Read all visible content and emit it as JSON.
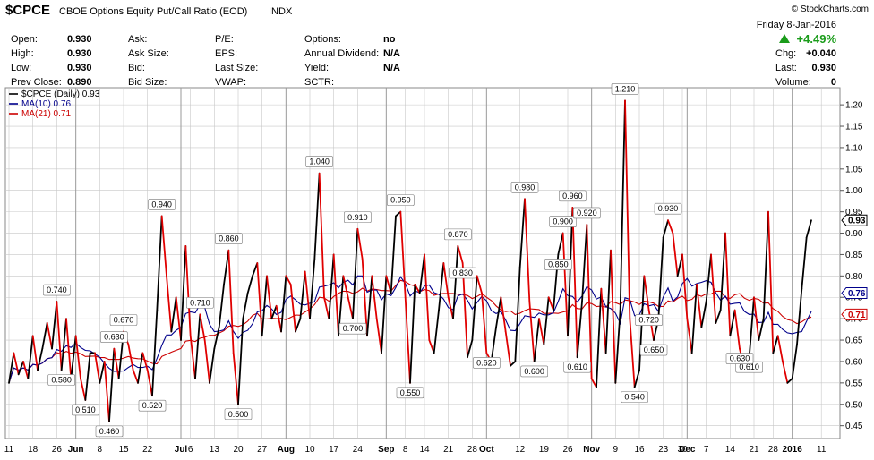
{
  "header": {
    "symbol": "$CPCE",
    "description": "CBOE Options Equity Put/Call Ratio (EOD)",
    "exchange": "INDX",
    "watermark": "© StockCharts.com",
    "date": "Friday   8-Jan-2016",
    "pct_change": "+4.49%"
  },
  "stats": [
    {
      "label": "Open:",
      "value": "0.930"
    },
    {
      "label": "High:",
      "value": "0.930"
    },
    {
      "label": "Low:",
      "value": "0.930"
    },
    {
      "label": "Prev Close:",
      "value": "0.890"
    },
    {
      "label": "Ask:",
      "value": ""
    },
    {
      "label": "Ask Size:",
      "value": ""
    },
    {
      "label": "Bid:",
      "value": ""
    },
    {
      "label": "Bid Size:",
      "value": ""
    },
    {
      "label": "P/E:",
      "value": ""
    },
    {
      "label": "EPS:",
      "value": ""
    },
    {
      "label": "Last Size:",
      "value": ""
    },
    {
      "label": "VWAP:",
      "value": ""
    },
    {
      "label": "Options:",
      "value": "no"
    },
    {
      "label": "Annual Dividend:",
      "value": "N/A"
    },
    {
      "label": "Yield:",
      "value": "N/A"
    },
    {
      "label": "SCTR:",
      "value": ""
    }
  ],
  "right_stats": [
    {
      "label": "Chg:",
      "value": "+0.040"
    },
    {
      "label": "Last:",
      "value": "0.930"
    },
    {
      "label": "Volume:",
      "value": "0"
    }
  ],
  "colors": {
    "up": "#1a9c1a",
    "price_down": "#e00000",
    "price_up": "#000000",
    "ma10": "#00008b",
    "ma21": "#cc0000",
    "grid": "#c8c8c8"
  },
  "chart_data": {
    "type": "line",
    "ylim": [
      0.42,
      1.24
    ],
    "yticks": [
      0.45,
      0.5,
      0.55,
      0.6,
      0.65,
      0.7,
      0.75,
      0.8,
      0.85,
      0.9,
      0.95,
      1.0,
      1.05,
      1.1,
      1.15,
      1.2
    ],
    "ytick_labels": [
      "0.45",
      "0.50",
      "0.55",
      "0.60",
      "0.65",
      "0.70",
      "0.75",
      "0.80",
      "0.85",
      "0.90",
      "0.95",
      "1.00",
      "1.05",
      "1.10",
      "1.15",
      "1.20"
    ],
    "x_range": [
      "2015-05-11",
      "2016-01-11"
    ],
    "x_ticks": [
      {
        "label": "11",
        "date": "2015-05-11",
        "bold": false
      },
      {
        "label": "18",
        "date": "2015-05-18",
        "bold": false
      },
      {
        "label": "26",
        "date": "2015-05-26",
        "bold": false
      },
      {
        "label": "Jun",
        "date": "2015-06-01",
        "bold": true
      },
      {
        "label": "8",
        "date": "2015-06-08",
        "bold": false
      },
      {
        "label": "15",
        "date": "2015-06-15",
        "bold": false
      },
      {
        "label": "22",
        "date": "2015-06-22",
        "bold": false
      },
      {
        "label": "Jul",
        "date": "2015-07-01",
        "bold": true
      },
      {
        "label": "6",
        "date": "2015-07-06",
        "bold": false
      },
      {
        "label": "13",
        "date": "2015-07-13",
        "bold": false
      },
      {
        "label": "20",
        "date": "2015-07-20",
        "bold": false
      },
      {
        "label": "27",
        "date": "2015-07-27",
        "bold": false
      },
      {
        "label": "Aug",
        "date": "2015-08-03",
        "bold": true
      },
      {
        "label": "10",
        "date": "2015-08-10",
        "bold": false
      },
      {
        "label": "17",
        "date": "2015-08-17",
        "bold": false
      },
      {
        "label": "24",
        "date": "2015-08-24",
        "bold": false
      },
      {
        "label": "Sep",
        "date": "2015-09-01",
        "bold": true
      },
      {
        "label": "8",
        "date": "2015-09-08",
        "bold": false
      },
      {
        "label": "14",
        "date": "2015-09-14",
        "bold": false
      },
      {
        "label": "21",
        "date": "2015-09-21",
        "bold": false
      },
      {
        "label": "28",
        "date": "2015-09-28",
        "bold": false
      },
      {
        "label": "Oct",
        "date": "2015-10-01",
        "bold": true
      },
      {
        "label": "12",
        "date": "2015-10-12",
        "bold": false
      },
      {
        "label": "19",
        "date": "2015-10-19",
        "bold": false
      },
      {
        "label": "26",
        "date": "2015-10-26",
        "bold": false
      },
      {
        "label": "Nov",
        "date": "2015-11-02",
        "bold": true
      },
      {
        "label": "9",
        "date": "2015-11-09",
        "bold": false
      },
      {
        "label": "16",
        "date": "2015-11-16",
        "bold": false
      },
      {
        "label": "23",
        "date": "2015-11-23",
        "bold": false
      },
      {
        "label": "30",
        "date": "2015-11-30",
        "bold": false
      },
      {
        "label": "Dec",
        "date": "2015-12-01",
        "bold": true
      },
      {
        "label": "7",
        "date": "2015-12-07",
        "bold": false
      },
      {
        "label": "14",
        "date": "2015-12-14",
        "bold": false
      },
      {
        "label": "21",
        "date": "2015-12-21",
        "bold": false
      },
      {
        "label": "28",
        "date": "2015-12-28",
        "bold": false
      },
      {
        "label": "2016",
        "date": "2016-01-04",
        "bold": true
      },
      {
        "label": "11",
        "date": "2016-01-11",
        "bold": false
      }
    ],
    "legend": [
      {
        "label": "$CPCE (Daily) 0.93",
        "color": "#000000"
      },
      {
        "label": "MA(10) 0.76",
        "color": "#00008b"
      },
      {
        "label": "MA(21) 0.71",
        "color": "#cc0000"
      }
    ],
    "last_tags": [
      {
        "label": "0.93",
        "value": 0.93,
        "color": "#000000"
      },
      {
        "label": "0.76",
        "value": 0.76,
        "color": "#00008b"
      },
      {
        "label": "0.71",
        "value": 0.71,
        "color": "#cc0000"
      }
    ],
    "series": [
      {
        "name": "$CPCE (Daily)",
        "points": [
          [
            "2015-05-11",
            0.55
          ],
          [
            "2015-05-12",
            0.62
          ],
          [
            "2015-05-13",
            0.57
          ],
          [
            "2015-05-14",
            0.6
          ],
          [
            "2015-05-15",
            0.56
          ],
          [
            "2015-05-18",
            0.66
          ],
          [
            "2015-05-19",
            0.58
          ],
          [
            "2015-05-20",
            0.63
          ],
          [
            "2015-05-21",
            0.69
          ],
          [
            "2015-05-22",
            0.63
          ],
          [
            "2015-05-26",
            0.74
          ],
          [
            "2015-05-27",
            0.58
          ],
          [
            "2015-05-28",
            0.7
          ],
          [
            "2015-05-29",
            0.56
          ],
          [
            "2015-06-01",
            0.66
          ],
          [
            "2015-06-02",
            0.56
          ],
          [
            "2015-06-03",
            0.51
          ],
          [
            "2015-06-04",
            0.62
          ],
          [
            "2015-06-05",
            0.62
          ],
          [
            "2015-06-08",
            0.55
          ],
          [
            "2015-06-09",
            0.6
          ],
          [
            "2015-06-10",
            0.46
          ],
          [
            "2015-06-11",
            0.63
          ],
          [
            "2015-06-12",
            0.56
          ],
          [
            "2015-06-15",
            0.67
          ],
          [
            "2015-06-16",
            0.64
          ],
          [
            "2015-06-17",
            0.58
          ],
          [
            "2015-06-18",
            0.55
          ],
          [
            "2015-06-19",
            0.62
          ],
          [
            "2015-06-22",
            0.58
          ],
          [
            "2015-06-23",
            0.52
          ],
          [
            "2015-06-24",
            0.72
          ],
          [
            "2015-06-25",
            0.94
          ],
          [
            "2015-06-26",
            0.8
          ],
          [
            "2015-06-29",
            0.67
          ],
          [
            "2015-06-30",
            0.75
          ],
          [
            "2015-07-01",
            0.65
          ],
          [
            "2015-07-02",
            0.87
          ],
          [
            "2015-07-06",
            0.66
          ],
          [
            "2015-07-07",
            0.56
          ],
          [
            "2015-07-08",
            0.71
          ],
          [
            "2015-07-09",
            0.65
          ],
          [
            "2015-07-10",
            0.55
          ],
          [
            "2015-07-13",
            0.63
          ],
          [
            "2015-07-14",
            0.68
          ],
          [
            "2015-07-15",
            0.78
          ],
          [
            "2015-07-16",
            0.86
          ],
          [
            "2015-07-17",
            0.62
          ],
          [
            "2015-07-20",
            0.5
          ],
          [
            "2015-07-21",
            0.7
          ],
          [
            "2015-07-22",
            0.76
          ],
          [
            "2015-07-23",
            0.8
          ],
          [
            "2015-07-24",
            0.83
          ],
          [
            "2015-07-27",
            0.66
          ],
          [
            "2015-07-28",
            0.8
          ],
          [
            "2015-07-29",
            0.7
          ],
          [
            "2015-07-30",
            0.73
          ],
          [
            "2015-07-31",
            0.67
          ],
          [
            "2015-08-03",
            0.8
          ],
          [
            "2015-08-04",
            0.78
          ],
          [
            "2015-08-05",
            0.67
          ],
          [
            "2015-08-06",
            0.7
          ],
          [
            "2015-08-07",
            0.81
          ],
          [
            "2015-08-10",
            0.7
          ],
          [
            "2015-08-11",
            0.84
          ],
          [
            "2015-08-12",
            1.04
          ],
          [
            "2015-08-13",
            0.75
          ],
          [
            "2015-08-14",
            0.7
          ],
          [
            "2015-08-17",
            0.85
          ],
          [
            "2015-08-18",
            0.66
          ],
          [
            "2015-08-19",
            0.8
          ],
          [
            "2015-08-20",
            0.75
          ],
          [
            "2015-08-21",
            0.7
          ],
          [
            "2015-08-24",
            0.91
          ],
          [
            "2015-08-25",
            0.84
          ],
          [
            "2015-08-26",
            0.66
          ],
          [
            "2015-08-27",
            0.8
          ],
          [
            "2015-08-28",
            0.7
          ],
          [
            "2015-08-31",
            0.62
          ],
          [
            "2015-09-01",
            0.8
          ],
          [
            "2015-09-02",
            0.76
          ],
          [
            "2015-09-03",
            0.94
          ],
          [
            "2015-09-04",
            0.95
          ],
          [
            "2015-09-08",
            0.75
          ],
          [
            "2015-09-09",
            0.55
          ],
          [
            "2015-09-10",
            0.78
          ],
          [
            "2015-09-11",
            0.76
          ],
          [
            "2015-09-14",
            0.85
          ],
          [
            "2015-09-15",
            0.65
          ],
          [
            "2015-09-16",
            0.62
          ],
          [
            "2015-09-17",
            0.72
          ],
          [
            "2015-09-18",
            0.83
          ],
          [
            "2015-09-21",
            0.75
          ],
          [
            "2015-09-22",
            0.7
          ],
          [
            "2015-09-23",
            0.87
          ],
          [
            "2015-09-24",
            0.83
          ],
          [
            "2015-09-25",
            0.61
          ],
          [
            "2015-09-28",
            0.65
          ],
          [
            "2015-09-29",
            0.8
          ],
          [
            "2015-09-30",
            0.76
          ],
          [
            "2015-10-01",
            0.62
          ],
          [
            "2015-10-02",
            0.6
          ],
          [
            "2015-10-05",
            0.68
          ],
          [
            "2015-10-06",
            0.75
          ],
          [
            "2015-10-07",
            0.67
          ],
          [
            "2015-10-08",
            0.59
          ],
          [
            "2015-10-09",
            0.6
          ],
          [
            "2015-10-12",
            0.82
          ],
          [
            "2015-10-13",
            0.98
          ],
          [
            "2015-10-14",
            0.74
          ],
          [
            "2015-10-15",
            0.6
          ],
          [
            "2015-10-16",
            0.7
          ],
          [
            "2015-10-19",
            0.64
          ],
          [
            "2015-10-20",
            0.75
          ],
          [
            "2015-10-21",
            0.72
          ],
          [
            "2015-10-22",
            0.85
          ],
          [
            "2015-10-23",
            0.9
          ],
          [
            "2015-10-26",
            0.66
          ],
          [
            "2015-10-27",
            0.96
          ],
          [
            "2015-10-28",
            0.61
          ],
          [
            "2015-10-29",
            0.74
          ],
          [
            "2015-10-30",
            0.92
          ],
          [
            "2015-11-02",
            0.56
          ],
          [
            "2015-11-03",
            0.54
          ],
          [
            "2015-11-04",
            0.77
          ],
          [
            "2015-11-05",
            0.62
          ],
          [
            "2015-11-06",
            0.86
          ],
          [
            "2015-11-09",
            0.55
          ],
          [
            "2015-11-10",
            0.72
          ],
          [
            "2015-11-11",
            1.21
          ],
          [
            "2015-11-12",
            0.7
          ],
          [
            "2015-11-13",
            0.54
          ],
          [
            "2015-11-16",
            0.58
          ],
          [
            "2015-11-17",
            0.8
          ],
          [
            "2015-11-18",
            0.72
          ],
          [
            "2015-11-19",
            0.65
          ],
          [
            "2015-11-20",
            0.7
          ],
          [
            "2015-11-23",
            0.89
          ],
          [
            "2015-11-24",
            0.93
          ],
          [
            "2015-11-25",
            0.9
          ],
          [
            "2015-11-27",
            0.8
          ],
          [
            "2015-11-30",
            0.85
          ],
          [
            "2015-12-01",
            0.7
          ],
          [
            "2015-12-02",
            0.62
          ],
          [
            "2015-12-03",
            0.78
          ],
          [
            "2015-12-04",
            0.68
          ],
          [
            "2015-12-07",
            0.74
          ],
          [
            "2015-12-08",
            0.85
          ],
          [
            "2015-12-09",
            0.69
          ],
          [
            "2015-12-10",
            0.72
          ],
          [
            "2015-12-11",
            0.9
          ],
          [
            "2015-12-14",
            0.66
          ],
          [
            "2015-12-15",
            0.72
          ],
          [
            "2015-12-16",
            0.63
          ],
          [
            "2015-12-17",
            0.58
          ],
          [
            "2015-12-18",
            0.61
          ],
          [
            "2015-12-21",
            0.75
          ],
          [
            "2015-12-22",
            0.65
          ],
          [
            "2015-12-23",
            0.7
          ],
          [
            "2015-12-24",
            0.95
          ],
          [
            "2015-12-28",
            0.62
          ],
          [
            "2015-12-29",
            0.66
          ],
          [
            "2015-12-30",
            0.6
          ],
          [
            "2015-12-31",
            0.55
          ],
          [
            "2016-01-04",
            0.56
          ],
          [
            "2016-01-05",
            0.64
          ],
          [
            "2016-01-06",
            0.77
          ],
          [
            "2016-01-07",
            0.89
          ],
          [
            "2016-01-08",
            0.93
          ]
        ]
      }
    ]
  }
}
